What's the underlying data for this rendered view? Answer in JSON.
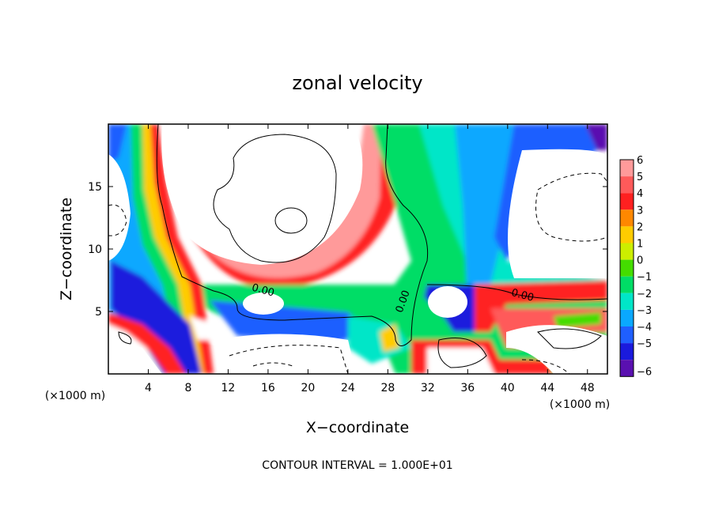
{
  "chart_data": {
    "type": "heatmap",
    "title": "zonal velocity",
    "xlabel": "X−coordinate",
    "ylabel": "Z−coordinate",
    "x_unit_left": "(×1000 m)",
    "x_unit_right": "(×1000 m)",
    "footer": "CONTOUR INTERVAL = 1.000E+01",
    "xlim": [
      0,
      50
    ],
    "ylim": [
      0,
      20
    ],
    "x_ticks": [
      4,
      8,
      12,
      16,
      20,
      24,
      28,
      32,
      36,
      40,
      44,
      48
    ],
    "y_ticks": [
      5,
      10,
      15
    ],
    "colorbar": {
      "levels": [
        6,
        5,
        4,
        3,
        2,
        1,
        0,
        -1,
        -2,
        -3,
        -4,
        -5,
        -6
      ],
      "labels": [
        "6",
        "5",
        "4",
        "3",
        "2",
        "1",
        "0",
        "−1",
        "−2",
        "−3",
        "−4",
        "−5",
        "−6"
      ],
      "colors": [
        "#ff9a9a",
        "#ff5a5a",
        "#ff2020",
        "#ff8800",
        "#ffcc00",
        "#ccee00",
        "#44dd00",
        "#00dd66",
        "#00e6c8",
        "#0aa8ff",
        "#1f5fff",
        "#1a1add",
        "#5a10b0"
      ]
    },
    "contour_labels": [
      {
        "text": "0.00",
        "x": 15.5,
        "z": 6.7
      },
      {
        "text": "0.00",
        "x": 41.5,
        "z": 6.3
      },
      {
        "text": "0.00",
        "x": 29.5,
        "z": 5.8
      }
    ],
    "grid": false,
    "legend_position": "right"
  }
}
